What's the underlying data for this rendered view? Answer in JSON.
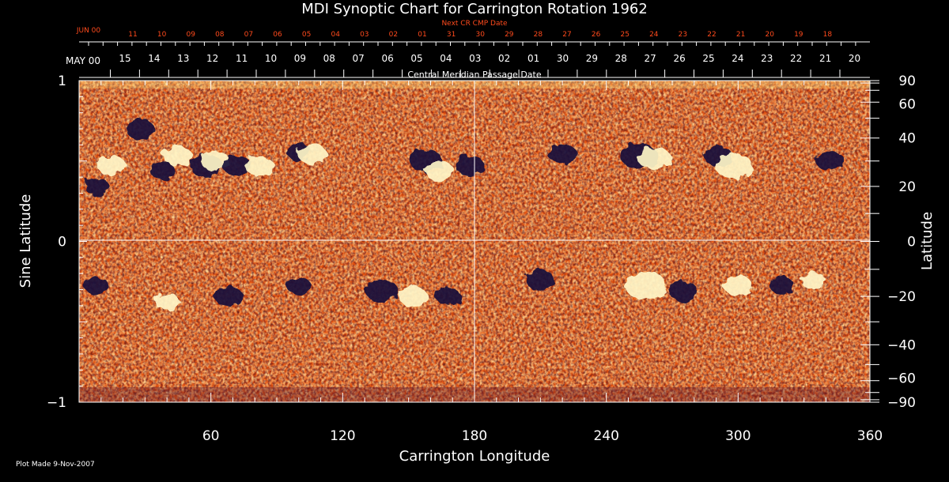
{
  "chart_data": {
    "type": "heatmap",
    "title": "MDI Synoptic Chart for Carrington Rotation 1962",
    "next_cr_label": "Next CR CMP Date",
    "next_cr_month": "JUN 00",
    "next_cr_days": [
      "11",
      "10",
      "09",
      "08",
      "07",
      "06",
      "05",
      "04",
      "03",
      "02",
      "01",
      "31",
      "30",
      "29",
      "28",
      "27",
      "26",
      "25",
      "24",
      "23",
      "22",
      "21",
      "20",
      "19",
      "18"
    ],
    "cmp_month": "MAY 00",
    "cmp_days": [
      "15",
      "14",
      "13",
      "12",
      "11",
      "10",
      "09",
      "08",
      "07",
      "06",
      "05",
      "04",
      "03",
      "02",
      "01",
      "30",
      "29",
      "28",
      "27",
      "26",
      "25",
      "24",
      "23",
      "22",
      "21",
      "20"
    ],
    "cmp_label": "Central Meridian Passage Date",
    "xlabel": "Carrington Longitude",
    "ylabel_left": "Sine Latitude",
    "ylabel_right": "Latitude",
    "xlim": [
      0,
      360
    ],
    "ylim": [
      -1,
      1
    ],
    "x_ticks": [
      "60",
      "120",
      "180",
      "240",
      "300",
      "360"
    ],
    "y_left_ticks": [
      {
        "value": 1,
        "label": "1"
      },
      {
        "value": 0,
        "label": "0"
      },
      {
        "value": -1,
        "label": "−1"
      }
    ],
    "y_right_ticks": [
      {
        "deg": 90,
        "label": "90"
      },
      {
        "deg": 60,
        "label": "60"
      },
      {
        "deg": 40,
        "label": "40"
      },
      {
        "deg": 20,
        "label": "20"
      },
      {
        "deg": 0,
        "label": "0"
      },
      {
        "deg": -20,
        "label": "−20"
      },
      {
        "deg": -40,
        "label": "−40"
      },
      {
        "deg": -60,
        "label": "−60"
      },
      {
        "deg": -90,
        "label": "−90"
      }
    ],
    "colors": {
      "background": "#000000",
      "field_base": "#e8520e",
      "positive_polarity": "#fff6c8",
      "negative_polarity": "#14103a",
      "accent_text": "#ff4a1c",
      "axis": "#ffffff"
    },
    "active_regions": [
      {
        "lon": 8,
        "lat": 20,
        "pol": "neg",
        "r": 6
      },
      {
        "lon": 15,
        "lat": 28,
        "pol": "pos",
        "r": 7
      },
      {
        "lon": 28,
        "lat": 44,
        "pol": "neg",
        "r": 7
      },
      {
        "lon": 38,
        "lat": 26,
        "pol": "neg",
        "r": 6
      },
      {
        "lon": 45,
        "lat": 32,
        "pol": "pos",
        "r": 7
      },
      {
        "lon": 58,
        "lat": 28,
        "pol": "neg",
        "r": 8
      },
      {
        "lon": 62,
        "lat": 30,
        "pol": "pos",
        "r": 7
      },
      {
        "lon": 72,
        "lat": 28,
        "pol": "neg",
        "r": 7
      },
      {
        "lon": 82,
        "lat": 28,
        "pol": "pos",
        "r": 7
      },
      {
        "lon": 100,
        "lat": 34,
        "pol": "neg",
        "r": 6
      },
      {
        "lon": 106,
        "lat": 33,
        "pol": "pos",
        "r": 7
      },
      {
        "lon": 158,
        "lat": 30,
        "pol": "neg",
        "r": 8
      },
      {
        "lon": 164,
        "lat": 26,
        "pol": "pos",
        "r": 7
      },
      {
        "lon": 178,
        "lat": 28,
        "pol": "neg",
        "r": 7
      },
      {
        "lon": 220,
        "lat": 33,
        "pol": "neg",
        "r": 7
      },
      {
        "lon": 255,
        "lat": 32,
        "pol": "neg",
        "r": 9
      },
      {
        "lon": 262,
        "lat": 31,
        "pol": "pos",
        "r": 8
      },
      {
        "lon": 291,
        "lat": 32,
        "pol": "neg",
        "r": 7
      },
      {
        "lon": 298,
        "lat": 28,
        "pol": "pos",
        "r": 9
      },
      {
        "lon": 342,
        "lat": 30,
        "pol": "neg",
        "r": 7
      },
      {
        "lon": 8,
        "lat": -16,
        "pol": "neg",
        "r": 6
      },
      {
        "lon": 40,
        "lat": -22,
        "pol": "pos",
        "r": 6
      },
      {
        "lon": 68,
        "lat": -20,
        "pol": "neg",
        "r": 7
      },
      {
        "lon": 100,
        "lat": -16,
        "pol": "neg",
        "r": 6
      },
      {
        "lon": 138,
        "lat": -18,
        "pol": "neg",
        "r": 8
      },
      {
        "lon": 152,
        "lat": -20,
        "pol": "pos",
        "r": 7
      },
      {
        "lon": 168,
        "lat": -20,
        "pol": "neg",
        "r": 6
      },
      {
        "lon": 210,
        "lat": -14,
        "pol": "neg",
        "r": 7
      },
      {
        "lon": 258,
        "lat": -16,
        "pol": "pos",
        "r": 10
      },
      {
        "lon": 275,
        "lat": -18,
        "pol": "neg",
        "r": 7
      },
      {
        "lon": 300,
        "lat": -16,
        "pol": "pos",
        "r": 7
      },
      {
        "lon": 320,
        "lat": -16,
        "pol": "neg",
        "r": 6
      },
      {
        "lon": 334,
        "lat": -14,
        "pol": "pos",
        "r": 6
      }
    ]
  },
  "footer": {
    "plot_made": "Plot Made  9-Nov-2007"
  }
}
